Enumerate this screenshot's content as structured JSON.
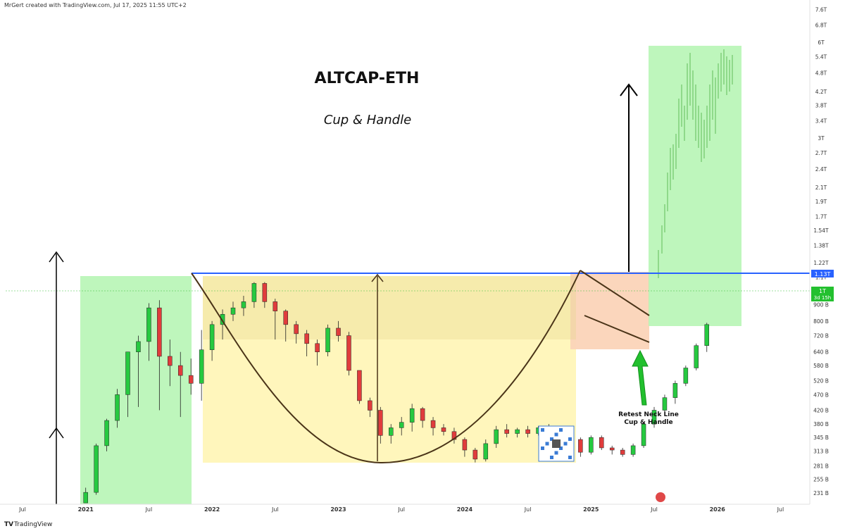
{
  "header": {
    "credit": "MrGert created with TradingView.com, Jul 17, 2025 11:55 UTC+2"
  },
  "footer": {
    "brand": "TradingView"
  },
  "chart_data": {
    "type": "candlestick",
    "title": "ALTCAP-ETH",
    "subtitle": "Cup & Handle",
    "annotation": "Retest Neck Line\nCup & Handle",
    "neckline_value": "1.13T",
    "price_label": {
      "value": "1T",
      "countdown": "3d 15h"
    },
    "y_scale": "log",
    "y_ticks": [
      "7.6T",
      "6.8T",
      "6T",
      "5.4T",
      "4.8T",
      "4.2T",
      "3.8T",
      "3.4T",
      "3T",
      "2.7T",
      "2.4T",
      "2.1T",
      "1.9T",
      "1.7T",
      "1.54T",
      "1.38T",
      "1.22T",
      "1.1T",
      "1T",
      "900 B",
      "800 B",
      "720 B",
      "640 B",
      "580 B",
      "520 B",
      "470 B",
      "420 B",
      "380 B",
      "345 B",
      "313 B",
      "281 B",
      "255 B",
      "231 B"
    ],
    "x_ticks": [
      "Jul",
      "2021",
      "Jul",
      "2022",
      "Jul",
      "2023",
      "Jul",
      "2024",
      "Jul",
      "2025",
      "Jul",
      "2026",
      "Jul"
    ],
    "x_range": [
      "2020-05",
      "2026-09"
    ],
    "y_range_billions": [
      215,
      8200
    ],
    "colors": {
      "up": "#26c940",
      "down": "#e03c3c",
      "neckline": "#2962ff",
      "green_zone": "#b3f5b0",
      "cup_zone": "#fff5b8",
      "handle_zone": "#fbd4b8",
      "cup_curve": "#4a3418",
      "arrow": "#000000"
    },
    "candles": [
      {
        "t": "2021-01",
        "o": 215,
        "h": 240,
        "l": 215,
        "c": 232
      },
      {
        "t": "2021-02",
        "o": 232,
        "h": 330,
        "l": 228,
        "c": 325
      },
      {
        "t": "2021-03",
        "o": 325,
        "h": 395,
        "l": 312,
        "c": 390
      },
      {
        "t": "2021-04",
        "o": 390,
        "h": 490,
        "l": 370,
        "c": 470
      },
      {
        "t": "2021-05",
        "o": 470,
        "h": 640,
        "l": 400,
        "c": 640
      },
      {
        "t": "2021-06",
        "o": 640,
        "h": 720,
        "l": 430,
        "c": 690
      },
      {
        "t": "2021-07",
        "o": 690,
        "h": 910,
        "l": 600,
        "c": 880
      },
      {
        "t": "2021-08",
        "o": 880,
        "h": 930,
        "l": 420,
        "c": 620
      },
      {
        "t": "2021-09",
        "o": 620,
        "h": 700,
        "l": 500,
        "c": 580
      },
      {
        "t": "2021-10",
        "o": 580,
        "h": 640,
        "l": 400,
        "c": 540
      },
      {
        "t": "2021-11",
        "o": 540,
        "h": 610,
        "l": 470,
        "c": 510
      },
      {
        "t": "2021-12",
        "o": 510,
        "h": 750,
        "l": 450,
        "c": 650
      },
      {
        "t": "2022-01",
        "o": 650,
        "h": 800,
        "l": 600,
        "c": 780
      },
      {
        "t": "2022-02",
        "o": 780,
        "h": 870,
        "l": 700,
        "c": 840
      },
      {
        "t": "2022-03",
        "o": 840,
        "h": 920,
        "l": 800,
        "c": 880
      },
      {
        "t": "2022-04",
        "o": 880,
        "h": 960,
        "l": 830,
        "c": 920
      },
      {
        "t": "2022-05",
        "o": 920,
        "h": 1060,
        "l": 880,
        "c": 1050
      },
      {
        "t": "2022-06",
        "o": 1050,
        "h": 1060,
        "l": 880,
        "c": 920
      },
      {
        "t": "2022-07",
        "o": 920,
        "h": 940,
        "l": 700,
        "c": 860
      },
      {
        "t": "2022-08",
        "o": 860,
        "h": 870,
        "l": 690,
        "c": 780
      },
      {
        "t": "2022-09",
        "o": 780,
        "h": 800,
        "l": 680,
        "c": 730
      },
      {
        "t": "2022-10",
        "o": 730,
        "h": 750,
        "l": 620,
        "c": 680
      },
      {
        "t": "2022-11",
        "o": 680,
        "h": 700,
        "l": 580,
        "c": 640
      },
      {
        "t": "2022-12",
        "o": 640,
        "h": 780,
        "l": 620,
        "c": 760
      },
      {
        "t": "2023-01",
        "o": 760,
        "h": 800,
        "l": 690,
        "c": 720
      },
      {
        "t": "2023-02",
        "o": 720,
        "h": 740,
        "l": 540,
        "c": 560
      },
      {
        "t": "2023-03",
        "o": 560,
        "h": 560,
        "l": 440,
        "c": 450
      },
      {
        "t": "2023-04",
        "o": 450,
        "h": 460,
        "l": 400,
        "c": 420
      },
      {
        "t": "2023-05",
        "o": 420,
        "h": 430,
        "l": 330,
        "c": 350
      },
      {
        "t": "2023-06",
        "o": 350,
        "h": 380,
        "l": 330,
        "c": 370
      },
      {
        "t": "2023-07",
        "o": 370,
        "h": 400,
        "l": 350,
        "c": 385
      },
      {
        "t": "2023-08",
        "o": 385,
        "h": 440,
        "l": 360,
        "c": 425
      },
      {
        "t": "2023-09",
        "o": 425,
        "h": 430,
        "l": 370,
        "c": 390
      },
      {
        "t": "2023-10",
        "o": 390,
        "h": 400,
        "l": 350,
        "c": 370
      },
      {
        "t": "2023-11",
        "o": 370,
        "h": 380,
        "l": 350,
        "c": 360
      },
      {
        "t": "2023-12",
        "o": 360,
        "h": 370,
        "l": 330,
        "c": 340
      },
      {
        "t": "2024-01",
        "o": 340,
        "h": 345,
        "l": 300,
        "c": 315
      },
      {
        "t": "2024-02",
        "o": 315,
        "h": 320,
        "l": 288,
        "c": 295
      },
      {
        "t": "2024-03",
        "o": 295,
        "h": 340,
        "l": 290,
        "c": 330
      },
      {
        "t": "2024-04",
        "o": 330,
        "h": 375,
        "l": 320,
        "c": 365
      },
      {
        "t": "2024-05",
        "o": 365,
        "h": 380,
        "l": 345,
        "c": 355
      },
      {
        "t": "2024-06",
        "o": 355,
        "h": 370,
        "l": 345,
        "c": 365
      },
      {
        "t": "2024-07",
        "o": 365,
        "h": 375,
        "l": 345,
        "c": 355
      },
      {
        "t": "2024-08",
        "o": 355,
        "h": 375,
        "l": 350,
        "c": 370
      },
      {
        "t": "2024-09",
        "o": 370,
        "h": 380,
        "l": 350,
        "c": 360
      },
      {
        "t": "2024-10",
        "o": 360,
        "h": 365,
        "l": 300,
        "c": 320
      },
      {
        "t": "2024-11",
        "o": 320,
        "h": 345,
        "l": 305,
        "c": 340
      },
      {
        "t": "2024-12",
        "o": 340,
        "h": 345,
        "l": 300,
        "c": 310
      },
      {
        "t": "2025-01",
        "o": 310,
        "h": 350,
        "l": 305,
        "c": 345
      },
      {
        "t": "2025-02",
        "o": 345,
        "h": 350,
        "l": 315,
        "c": 320
      },
      {
        "t": "2025-03",
        "o": 320,
        "h": 325,
        "l": 305,
        "c": 315
      },
      {
        "t": "2025-04",
        "o": 315,
        "h": 320,
        "l": 300,
        "c": 305
      },
      {
        "t": "2025-05",
        "o": 305,
        "h": 330,
        "l": 300,
        "c": 325
      },
      {
        "t": "2025-06",
        "o": 325,
        "h": 385,
        "l": 320,
        "c": 380
      },
      {
        "t": "2025-07",
        "o": 380,
        "h": 430,
        "l": 370,
        "c": 420
      },
      {
        "t": "2025-08",
        "o": 420,
        "h": 470,
        "l": 410,
        "c": 460
      },
      {
        "t": "2025-09",
        "o": 460,
        "h": 520,
        "l": 440,
        "c": 510
      },
      {
        "t": "2025-10",
        "o": 510,
        "h": 580,
        "l": 500,
        "c": 570
      },
      {
        "t": "2025-11",
        "o": 570,
        "h": 680,
        "l": 560,
        "c": 670
      },
      {
        "t": "2025-12",
        "o": 670,
        "h": 790,
        "l": 640,
        "c": 780
      }
    ]
  }
}
